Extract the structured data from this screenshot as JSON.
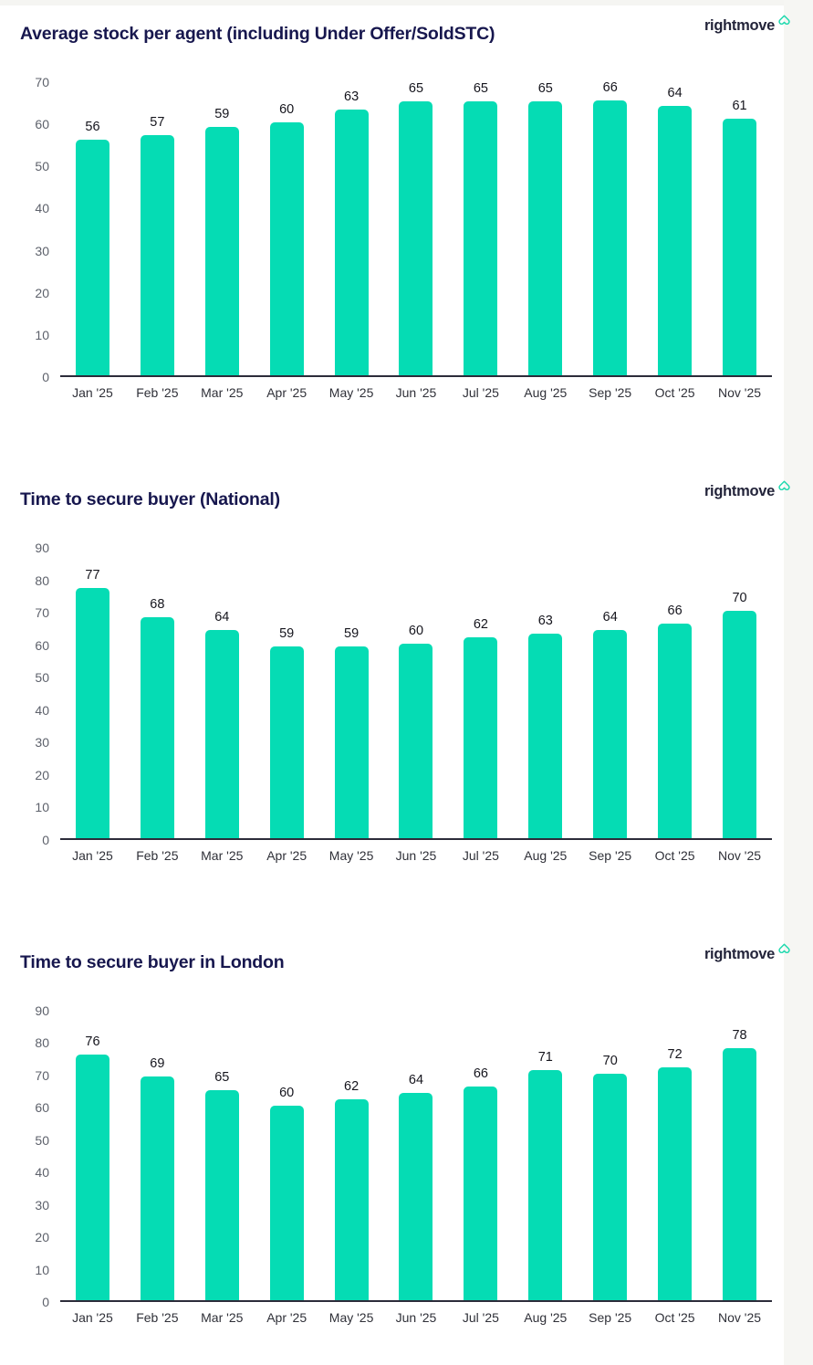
{
  "brand": {
    "wordmark": "rightmove",
    "home_icon": "house-outline-icon",
    "navy": "#17174e",
    "teal": "#05dcb4"
  },
  "chart_data": [
    {
      "type": "bar",
      "title": "Average stock per agent (including Under Offer/SoldSTC)",
      "categories": [
        "Jan '25",
        "Feb '25",
        "Mar '25",
        "Apr '25",
        "May '25",
        "Jun '25",
        "Jul '25",
        "Aug '25",
        "Sep '25",
        "Oct '25",
        "Nov '25"
      ],
      "values": [
        56,
        57,
        59,
        60,
        63,
        65,
        65,
        65,
        66,
        64,
        61
      ],
      "xlabel": "",
      "ylabel": "",
      "ylim": [
        0,
        70
      ],
      "ytick_step": 10,
      "grid": false,
      "legend": "none",
      "bar_color": "#05dcb4",
      "data_labels": true
    },
    {
      "type": "bar",
      "title": "Time to secure buyer (National)",
      "categories": [
        "Jan '25",
        "Feb '25",
        "Mar '25",
        "Apr '25",
        "May '25",
        "Jun '25",
        "Jul '25",
        "Aug '25",
        "Sep '25",
        "Oct '25",
        "Nov '25"
      ],
      "values": [
        77,
        68,
        64,
        59,
        59,
        60,
        62,
        63,
        64,
        66,
        70
      ],
      "xlabel": "",
      "ylabel": "",
      "ylim": [
        0,
        90
      ],
      "ytick_step": 10,
      "grid": false,
      "legend": "none",
      "bar_color": "#05dcb4",
      "data_labels": true
    },
    {
      "type": "bar",
      "title": "Time to secure buyer in London",
      "categories": [
        "Jan '25",
        "Feb '25",
        "Mar '25",
        "Apr '25",
        "May '25",
        "Jun '25",
        "Jul '25",
        "Aug '25",
        "Sep '25",
        "Oct '25",
        "Nov '25"
      ],
      "values": [
        76,
        69,
        65,
        60,
        62,
        64,
        66,
        71,
        70,
        72,
        78
      ],
      "xlabel": "",
      "ylabel": "",
      "ylim": [
        0,
        90
      ],
      "ytick_step": 10,
      "grid": false,
      "legend": "none",
      "bar_color": "#05dcb4",
      "data_labels": true
    }
  ]
}
